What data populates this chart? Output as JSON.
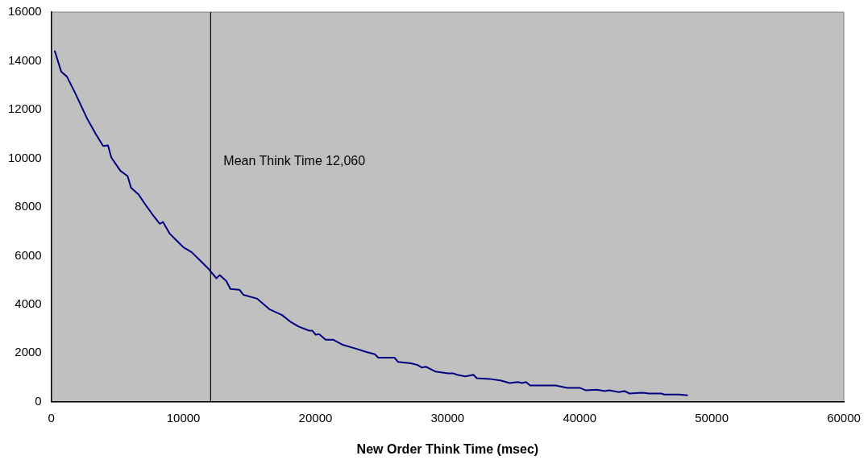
{
  "chart_data": {
    "type": "line",
    "xlabel": "New Order Think Time (msec)",
    "x": [
      250,
      750,
      1180,
      1800,
      2670,
      3360,
      3920,
      4290,
      4540,
      5220,
      5780,
      6030,
      6590,
      7090,
      7710,
      8210,
      8460,
      8950,
      9510,
      10010,
      10630,
      11380,
      11880,
      12500,
      12750,
      13240,
      13560,
      14240,
      14550,
      15600,
      16540,
      17470,
      18090,
      18720,
      19520,
      19770,
      20020,
      20270,
      20770,
      21330,
      22010,
      23070,
      23810,
      24500,
      24750,
      25990,
      26240,
      27230,
      27730,
      28040,
      28350,
      29100,
      30030,
      30410,
      30720,
      31340,
      31960,
      32210,
      33200,
      34070,
      34700,
      35320,
      35630,
      35940,
      36250,
      37370,
      38180,
      39050,
      40040,
      40480,
      41290,
      41910,
      42220,
      42970,
      43400,
      43780,
      44710,
      45270,
      46200,
      46390,
      47500,
      48190
    ],
    "series": [
      {
        "color": "#000080",
        "values": [
          14420,
          13550,
          13350,
          12680,
          11670,
          11000,
          10500,
          10530,
          10030,
          9490,
          9260,
          8790,
          8520,
          8120,
          7650,
          7310,
          7380,
          6910,
          6610,
          6340,
          6140,
          5740,
          5470,
          5070,
          5200,
          4960,
          4630,
          4600,
          4390,
          4230,
          3790,
          3560,
          3290,
          3090,
          2920,
          2920,
          2750,
          2780,
          2550,
          2550,
          2350,
          2180,
          2050,
          1950,
          1810,
          1810,
          1640,
          1580,
          1510,
          1410,
          1440,
          1240,
          1170,
          1170,
          1110,
          1040,
          1110,
          970,
          940,
          870,
          770,
          810,
          770,
          810,
          670,
          670,
          670,
          570,
          570,
          470,
          500,
          440,
          470,
          400,
          440,
          340,
          370,
          340,
          340,
          300,
          300,
          270
        ]
      }
    ],
    "xlim": [
      0,
      60000
    ],
    "xticks": [
      0,
      10000,
      20000,
      30000,
      40000,
      50000,
      60000
    ],
    "ylim": [
      0,
      16000
    ],
    "yticks": [
      0,
      2000,
      4000,
      6000,
      8000,
      10000,
      12000,
      14000,
      16000
    ],
    "ref_lines": [
      {
        "axis": "x",
        "value": 12060,
        "label": "Mean Think Time 12,060",
        "color": "#000000"
      }
    ],
    "grid": false,
    "legend": false,
    "marker": "none",
    "line_style": "solid"
  }
}
